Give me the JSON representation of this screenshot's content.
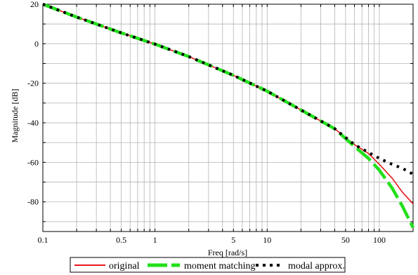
{
  "chart_data": {
    "type": "line",
    "title": "",
    "xlabel": "Freq [rad/s]",
    "ylabel": "Magnitude [dB]",
    "x_scale": "log",
    "xlim": [
      0.1,
      200
    ],
    "ylim": [
      -95,
      20
    ],
    "grid": true,
    "legend_position": "bottom-center",
    "x_ticks": [
      {
        "value": 0.1,
        "label": "0.1"
      },
      {
        "value": 0.5,
        "label": "0.5"
      },
      {
        "value": 1,
        "label": "1"
      },
      {
        "value": 5,
        "label": "5"
      },
      {
        "value": 10,
        "label": "10"
      },
      {
        "value": 50,
        "label": "50"
      },
      {
        "value": 100,
        "label": "100"
      }
    ],
    "y_ticks": [
      {
        "value": 20,
        "label": "20"
      },
      {
        "value": 0,
        "label": "0"
      },
      {
        "value": -20,
        "label": "-20"
      },
      {
        "value": -40,
        "label": "-40"
      },
      {
        "value": -60,
        "label": "-60"
      },
      {
        "value": -80,
        "label": "-80"
      }
    ],
    "series": [
      {
        "name": "original",
        "color": "#e8191c",
        "style": "solid",
        "x": [
          0.1,
          0.2,
          0.5,
          1,
          2,
          5,
          10,
          20,
          40,
          60,
          80,
          100,
          130,
          160,
          200
        ],
        "y": [
          20,
          13.5,
          5.5,
          -0.2,
          -6.5,
          -16,
          -24,
          -33.5,
          -43,
          -51,
          -55.5,
          -61,
          -68,
          -75,
          -81
        ]
      },
      {
        "name": "moment matching",
        "color": "#22e01a",
        "style": "dashed",
        "x": [
          0.1,
          0.2,
          0.5,
          1,
          2,
          5,
          10,
          20,
          40,
          60,
          80,
          100,
          130,
          160,
          200
        ],
        "y": [
          20,
          13.5,
          5.5,
          -0.2,
          -6.5,
          -16,
          -24,
          -33.5,
          -43,
          -52,
          -58,
          -64,
          -73,
          -82,
          -93
        ]
      },
      {
        "name": "modal approx.",
        "color": "#000000",
        "style": "dotted",
        "x": [
          0.1,
          0.2,
          0.5,
          1,
          2,
          5,
          10,
          20,
          40,
          60,
          80,
          100,
          130,
          160,
          200
        ],
        "y": [
          20,
          13.5,
          5.5,
          -0.2,
          -6.5,
          -16,
          -24,
          -33.5,
          -43,
          -51,
          -55,
          -58,
          -61,
          -63,
          -66
        ]
      }
    ]
  }
}
